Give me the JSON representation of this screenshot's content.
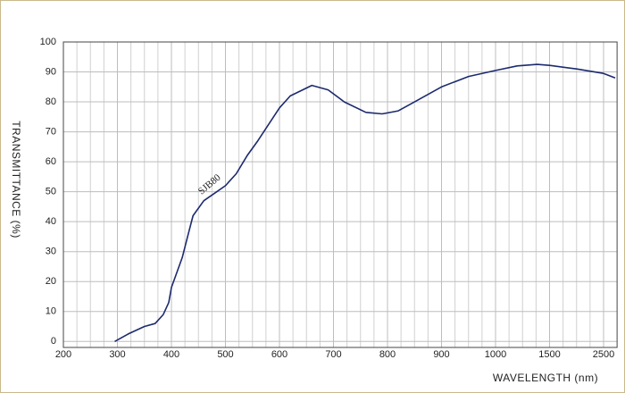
{
  "chart_data": {
    "type": "line",
    "ylabel": "TRANSMITTANCE  (%)",
    "xlabel": "WAVELENGTH (nm)",
    "annotation": "SJB80",
    "x": [
      295,
      320,
      350,
      370,
      385,
      395,
      400,
      420,
      430,
      440,
      460,
      480,
      500,
      520,
      540,
      560,
      600,
      620,
      660,
      690,
      720,
      760,
      790,
      820,
      850,
      900,
      950,
      1000,
      1200,
      1385,
      1500,
      2000,
      2500,
      2715
    ],
    "series": [
      {
        "name": "SJB80",
        "color": "#1c2a6e",
        "values": [
          0,
          2.5,
          5,
          6,
          9,
          13,
          18,
          28,
          35,
          42,
          47,
          49.5,
          52,
          56,
          62,
          67,
          78,
          82,
          85.5,
          84,
          80,
          76.5,
          76,
          77,
          80,
          85,
          88.5,
          90.5,
          92,
          92.5,
          92.2,
          91,
          89.5,
          88
        ]
      }
    ],
    "xlim": [
      200,
      2750
    ],
    "xticks": [
      200,
      300,
      400,
      500,
      600,
      700,
      800,
      900,
      1000,
      1500,
      2500
    ],
    "ylim": [
      -2,
      100
    ],
    "yticks": [
      0,
      10,
      20,
      30,
      40,
      50,
      60,
      70,
      80,
      90,
      100
    ],
    "grid": true
  }
}
